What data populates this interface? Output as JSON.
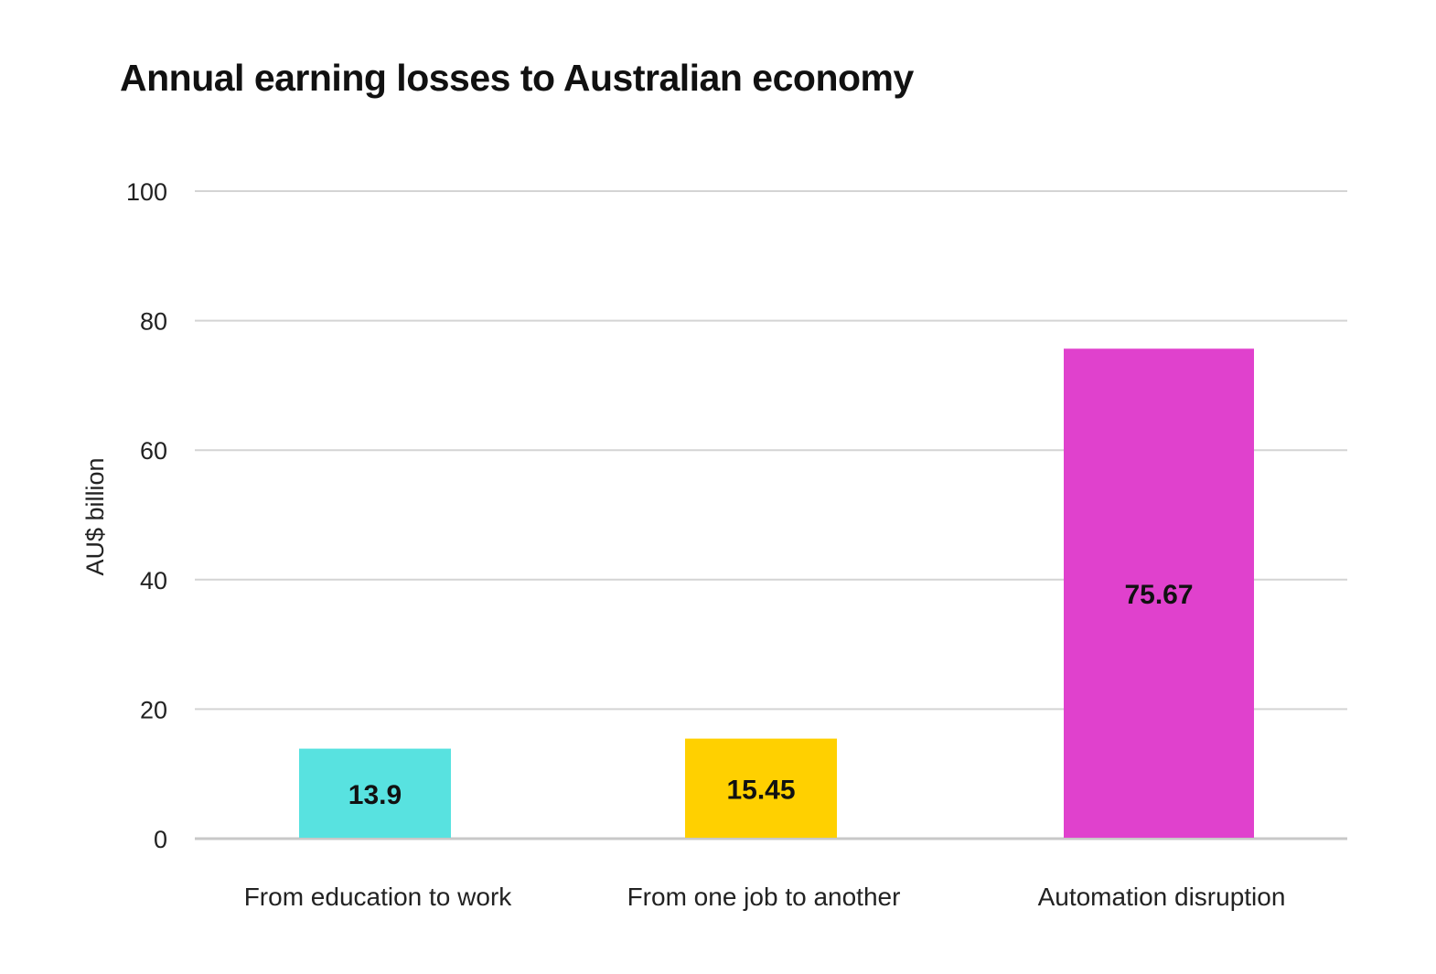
{
  "chart_data": {
    "type": "bar",
    "title": "Annual earning losses to Australian economy",
    "xlabel": "",
    "ylabel": "AU$ billion",
    "ylim": [
      0,
      100
    ],
    "yticks": [
      0,
      20,
      40,
      60,
      80,
      100
    ],
    "grid": true,
    "categories": [
      "From education to work",
      "From one job to another",
      "Automation disruption"
    ],
    "values": [
      13.9,
      15.45,
      75.67
    ],
    "data_labels": [
      "13.9",
      "15.45",
      "75.67"
    ],
    "colors": [
      "#58E2E0",
      "#FFD000",
      "#E041CD"
    ]
  }
}
